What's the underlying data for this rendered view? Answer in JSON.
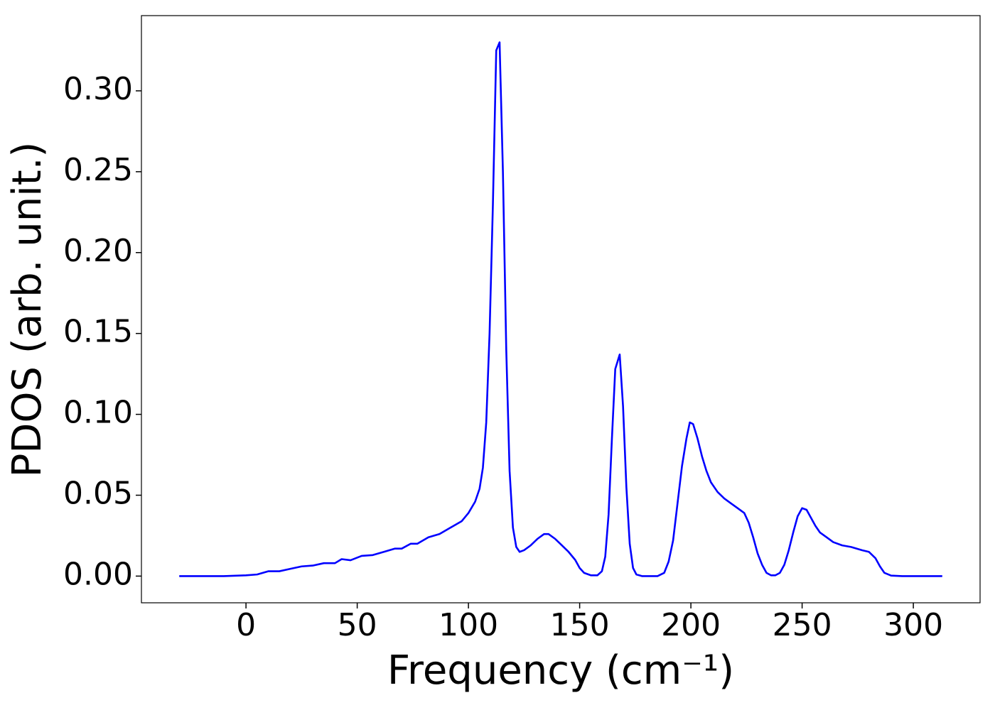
{
  "chart_data": {
    "type": "line",
    "xlabel": "Frequency (cm⁻¹)",
    "ylabel": "PDOS (arb. unit.)",
    "x": [
      -30,
      -20,
      -10,
      0,
      5,
      10,
      15,
      20,
      25,
      30,
      35,
      40,
      43,
      47,
      52,
      57,
      62,
      67,
      70,
      74,
      77,
      82,
      87,
      92,
      97,
      100,
      103,
      105,
      106.5,
      108,
      109.5,
      111,
      112.5,
      114,
      115.5,
      117,
      118.5,
      120,
      121.5,
      123,
      125,
      128,
      131,
      134,
      136,
      139,
      142,
      145,
      148,
      150,
      152,
      155,
      158,
      160,
      161.5,
      163,
      164.5,
      166,
      168,
      169.5,
      171,
      172.5,
      174,
      175.5,
      178,
      185,
      188,
      190,
      192,
      194,
      196,
      198,
      199.5,
      201,
      203,
      205,
      207,
      209,
      212,
      215,
      218,
      221,
      224,
      226,
      228,
      230,
      232,
      234,
      236,
      238,
      240,
      242,
      244,
      246,
      248,
      250,
      252,
      254,
      256,
      258,
      261,
      264,
      268,
      272,
      277,
      280,
      283,
      285,
      287,
      290,
      295,
      313
    ],
    "series": [
      {
        "name": "PDOS",
        "color": "#0000ff",
        "values": [
          0,
          0,
          0,
          0.0005,
          0.001,
          0.003,
          0.003,
          0.0045,
          0.006,
          0.0065,
          0.008,
          0.008,
          0.0105,
          0.0098,
          0.0125,
          0.013,
          0.015,
          0.017,
          0.017,
          0.02,
          0.02,
          0.024,
          0.026,
          0.03,
          0.034,
          0.039,
          0.046,
          0.054,
          0.067,
          0.095,
          0.15,
          0.23,
          0.325,
          0.33,
          0.25,
          0.14,
          0.065,
          0.03,
          0.018,
          0.015,
          0.016,
          0.019,
          0.023,
          0.026,
          0.026,
          0.023,
          0.019,
          0.015,
          0.01,
          0.005,
          0.002,
          0.0005,
          0.0005,
          0.003,
          0.012,
          0.038,
          0.085,
          0.128,
          0.137,
          0.105,
          0.055,
          0.02,
          0.005,
          0.001,
          0,
          0,
          0.002,
          0.009,
          0.022,
          0.045,
          0.068,
          0.085,
          0.095,
          0.094,
          0.085,
          0.074,
          0.065,
          0.058,
          0.052,
          0.048,
          0.045,
          0.042,
          0.039,
          0.033,
          0.024,
          0.014,
          0.007,
          0.002,
          0.0005,
          0.0005,
          0.002,
          0.007,
          0.016,
          0.027,
          0.037,
          0.042,
          0.041,
          0.036,
          0.031,
          0.027,
          0.024,
          0.021,
          0.019,
          0.018,
          0.016,
          0.015,
          0.011,
          0.006,
          0.002,
          0.0003,
          0,
          0
        ]
      }
    ],
    "xlim": [
      -47,
      330
    ],
    "xticks": [
      0,
      50,
      100,
      150,
      200,
      250,
      300
    ],
    "ylim": [
      -0.0165,
      0.3465
    ],
    "yticks": [
      {
        "value": 0,
        "label": "0.00"
      },
      {
        "value": 0.05,
        "label": "0.05"
      },
      {
        "value": 0.1,
        "label": "0.10"
      },
      {
        "value": 0.15,
        "label": "0.15"
      },
      {
        "value": 0.2,
        "label": "0.20"
      },
      {
        "value": 0.25,
        "label": "0.25"
      },
      {
        "value": 0.3,
        "label": "0.30"
      }
    ],
    "grid": false
  }
}
